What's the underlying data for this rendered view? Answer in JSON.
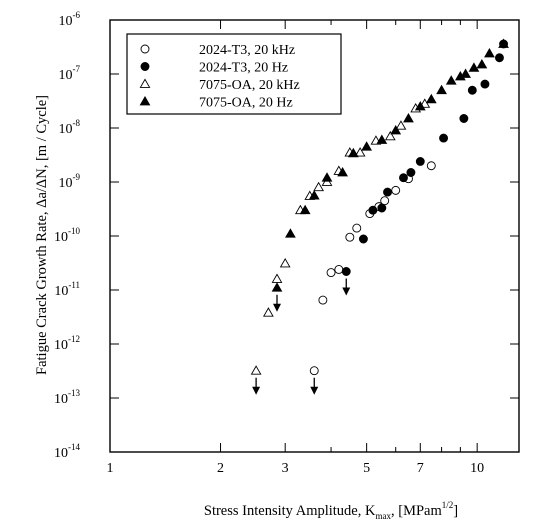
{
  "chart_data": {
    "type": "scatter",
    "title": "",
    "xlabel": "Stress Intensity Amplitude, K",
    "xlabel_sub": "max",
    "xlabel_unit_prefix": ",  [MPam",
    "xlabel_unit_sup": "1/2",
    "xlabel_unit_suffix": "]",
    "ylabel": "Fatigue Crack Growth Rate,  Δa/ΔN, [m / Cycle]",
    "xscale": "log",
    "yscale": "log",
    "xlim": [
      1,
      13
    ],
    "ylim": [
      1e-14,
      1e-06
    ],
    "grid": false,
    "legend_position": "top-left",
    "x_ticks": [
      {
        "value": 1,
        "label": "1"
      },
      {
        "value": 2,
        "label": "2"
      },
      {
        "value": 3,
        "label": "3"
      },
      {
        "value": 5,
        "label": "5"
      },
      {
        "value": 7,
        "label": "7"
      },
      {
        "value": 10,
        "label": "10"
      }
    ],
    "x_minor_ticks": [
      4,
      6,
      8,
      9
    ],
    "y_ticks": [
      {
        "exp": -14,
        "base": "10",
        "sup": "-14"
      },
      {
        "exp": -13,
        "base": "10",
        "sup": "-13"
      },
      {
        "exp": -12,
        "base": "10",
        "sup": "-12"
      },
      {
        "exp": -11,
        "base": "10",
        "sup": "-11"
      },
      {
        "exp": -10,
        "base": "10",
        "sup": "-10"
      },
      {
        "exp": -9,
        "base": "10",
        "sup": "-9"
      },
      {
        "exp": -8,
        "base": "10",
        "sup": "-8"
      },
      {
        "exp": -7,
        "base": "10",
        "sup": "-7"
      },
      {
        "exp": -6,
        "base": "10",
        "sup": "-6"
      }
    ],
    "series": [
      {
        "name": "2024-T3, 20 kHz",
        "marker": "circle-open",
        "points": [
          [
            3.8,
            6.5e-12
          ],
          [
            4.0,
            2.1e-11
          ],
          [
            4.2,
            2.4e-11
          ],
          [
            4.5,
            9.5e-11
          ],
          [
            4.7,
            1.4e-10
          ],
          [
            5.1,
            2.6e-10
          ],
          [
            5.4,
            3.5e-10
          ],
          [
            5.6,
            4.5e-10
          ],
          [
            6.0,
            7e-10
          ],
          [
            6.5,
            1.15e-09
          ],
          [
            7.5,
            2e-09
          ]
        ]
      },
      {
        "name": "2024-T3, 20 Hz",
        "marker": "circle-filled",
        "points": [
          [
            4.9,
            8.8e-11
          ],
          [
            5.2,
            3e-10
          ],
          [
            5.5,
            3.3e-10
          ],
          [
            5.7,
            6.5e-10
          ],
          [
            6.3,
            1.2e-09
          ],
          [
            6.6,
            1.5e-09
          ],
          [
            7.0,
            2.4e-09
          ],
          [
            8.1,
            6.5e-09
          ],
          [
            9.2,
            1.5e-08
          ],
          [
            9.7,
            5e-08
          ],
          [
            10.5,
            6.5e-08
          ],
          [
            11.5,
            2e-07
          ],
          [
            11.8,
            3.6e-07
          ]
        ]
      },
      {
        "name": "7075-OA, 20 kHz",
        "marker": "triangle-open",
        "points": [
          [
            2.7,
            3.8e-12
          ],
          [
            2.85,
            1.6e-11
          ],
          [
            3.0,
            3.1e-11
          ],
          [
            3.3,
            3e-10
          ],
          [
            3.5,
            5.5e-10
          ],
          [
            3.7,
            8e-10
          ],
          [
            3.9,
            1e-09
          ],
          [
            4.2,
            1.6e-09
          ],
          [
            4.5,
            3.5e-09
          ],
          [
            4.8,
            3.5e-09
          ],
          [
            5.3,
            5.8e-09
          ],
          [
            5.8,
            7e-09
          ],
          [
            6.2,
            1.1e-08
          ],
          [
            6.8,
            2.3e-08
          ],
          [
            7.2,
            2.8e-08
          ]
        ]
      },
      {
        "name": "7075-OA, 20 Hz",
        "marker": "triangle-filled",
        "points": [
          [
            3.1,
            1.1e-10
          ],
          [
            3.4,
            3e-10
          ],
          [
            3.6,
            5.6e-10
          ],
          [
            3.9,
            1.2e-09
          ],
          [
            4.3,
            1.5e-09
          ],
          [
            4.6,
            3.4e-09
          ],
          [
            5.0,
            4.5e-09
          ],
          [
            5.5,
            6e-09
          ],
          [
            6.0,
            9e-09
          ],
          [
            6.5,
            1.5e-08
          ],
          [
            7.0,
            2.5e-08
          ],
          [
            7.5,
            3.4e-08
          ],
          [
            8.0,
            5e-08
          ],
          [
            8.5,
            7.5e-08
          ],
          [
            9.0,
            9e-08
          ],
          [
            9.3,
            1e-07
          ],
          [
            9.8,
            1.3e-07
          ],
          [
            10.3,
            1.5e-07
          ],
          [
            10.8,
            2.4e-07
          ],
          [
            11.8,
            3.6e-07
          ]
        ]
      }
    ],
    "threshold_points": [
      {
        "series": "7075-OA, 20 kHz",
        "x": 2.5,
        "y": 3.2e-13,
        "arrow": "down"
      },
      {
        "series": "2024-T3, 20 kHz",
        "x": 3.6,
        "y": 3.2e-13,
        "arrow": "down"
      },
      {
        "series": "7075-OA, 20 Hz",
        "x": 2.85,
        "y": 1.1e-11,
        "arrow": "down"
      },
      {
        "series": "2024-T3, 20 Hz",
        "x": 4.4,
        "y": 2.2e-11,
        "arrow": "down"
      }
    ]
  }
}
